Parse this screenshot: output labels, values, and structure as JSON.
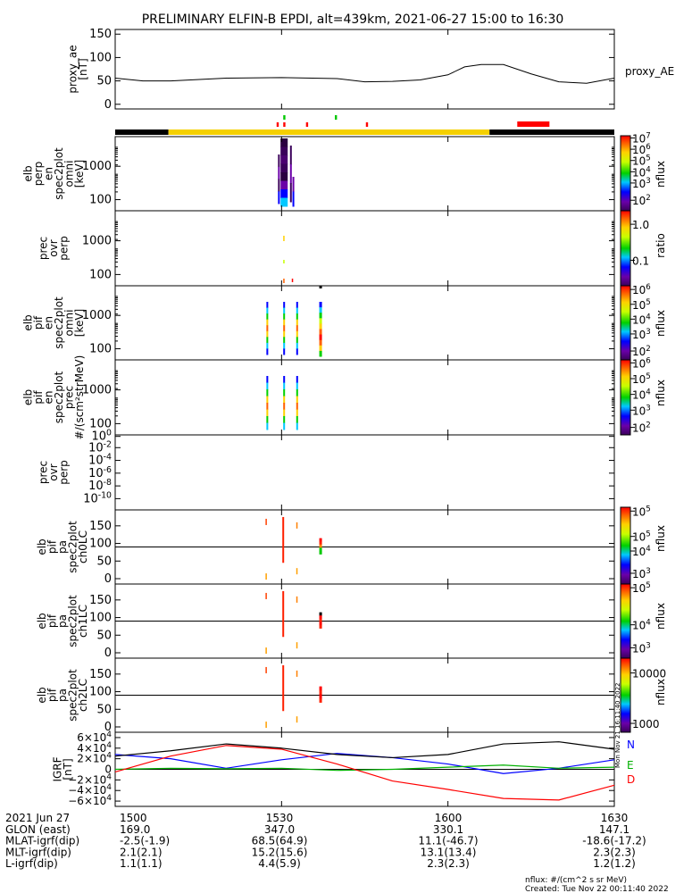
{
  "title": "PRELIMINARY ELFIN-B EPDI, alt=439km, 2021-06-27 15:00 to 16:30",
  "x_range": [
    "2021-06-27 15:00",
    "2021-06-27 16:30"
  ],
  "x_ticks": [
    "1500",
    "1530",
    "1600",
    "1630"
  ],
  "colors": {
    "N": "#0000ff",
    "E": "#00b000",
    "D": "#ff0000",
    "F": "#000000",
    "yellow": "#f5d000",
    "red": "#ff0000",
    "green": "#00c800"
  },
  "chart_data": [
    {
      "id": "proxy_ae",
      "type": "line",
      "ylabel": "proxy_ae\n[nT]",
      "legend": "proxy_AE",
      "ylim": [
        -10,
        160
      ],
      "yticks": [
        "150",
        "100",
        "50",
        "0"
      ],
      "x_minutes": [
        0,
        5,
        10,
        20,
        30,
        40,
        45,
        50,
        55,
        60,
        63,
        66,
        70,
        75,
        80,
        85,
        90
      ],
      "values": [
        56,
        50,
        50,
        56,
        57,
        55,
        48,
        49,
        52,
        63,
        80,
        85,
        85,
        65,
        48,
        45,
        56
      ]
    },
    {
      "id": "status_bar",
      "type": "bar",
      "segments": [
        {
          "color": "black",
          "from": 0,
          "to": 9.6
        },
        {
          "color": "yellow",
          "from": 9.6,
          "to": 67.5
        },
        {
          "color": "black",
          "from": 67.5,
          "to": 90
        }
      ],
      "red_marks": [
        29.3,
        30.5,
        34.6,
        45.4
      ],
      "green_marks": [
        30.5,
        39.8
      ],
      "red_block": [
        72.5,
        78.3
      ]
    },
    {
      "id": "elb_perp_en",
      "type": "heatmap",
      "ylabel": "elb\nperp\nen\nspec2plot\nomni\n[keV]",
      "yticks": [
        "1000",
        "100"
      ],
      "colorbar": {
        "label": "nflux",
        "ticks": [
          "10^7",
          "10^6",
          "10^5",
          "10^4",
          "10^3",
          "10^2"
        ]
      }
    },
    {
      "id": "prec_ovr_perp",
      "type": "heatmap",
      "ylabel": "prec\novr\nperp",
      "yticks": [
        "1000",
        "100"
      ],
      "colorbar": {
        "label": "ratio",
        "ticks": [
          "1.0",
          "0.1"
        ]
      }
    },
    {
      "id": "elb_pif_en_omni",
      "type": "heatmap",
      "ylabel": "elb\npif\nen\nspec2plot\nomni\n[keV]",
      "yticks": [
        "1000",
        "100"
      ],
      "colorbar": {
        "label": "nflux",
        "ticks": [
          "10^6",
          "10^5",
          "10^4",
          "10^3",
          "10^2"
        ]
      }
    },
    {
      "id": "elb_pif_en_prec",
      "type": "heatmap",
      "ylabel": "elb\npif\nen\nspec2plot\nprec\n#/(scm²strMeV)",
      "yticks": [
        "1000",
        "100"
      ],
      "colorbar": {
        "label": "nflux",
        "ticks": [
          "10^6",
          "10^5",
          "10^4",
          "10^3",
          "10^2"
        ]
      }
    },
    {
      "id": "prec_ovr_perp_2",
      "type": "line",
      "ylabel": "prec\novr\nperp",
      "yticks": [
        "10^0",
        "10^-2",
        "10^-4",
        "10^-6",
        "10^-8",
        "10^-10"
      ]
    },
    {
      "id": "ch0LC",
      "type": "heatmap",
      "ylabel": "elb\npif\npa\nspec2plot\nch0LC",
      "yticks": [
        "150",
        "100",
        "50",
        "0"
      ],
      "colorbar": {
        "label": "nflux",
        "ticks": [
          "10^5",
          "10^5",
          "10^4",
          "10^3"
        ]
      }
    },
    {
      "id": "ch1LC",
      "type": "heatmap",
      "ylabel": "elb\npif\npa\nspec2plot\nch1LC",
      "yticks": [
        "150",
        "100",
        "50",
        "0"
      ],
      "colorbar": {
        "label": "nflux",
        "ticks": [
          "10^5",
          "10^4",
          "10^3"
        ]
      }
    },
    {
      "id": "ch2LC",
      "type": "heatmap",
      "ylabel": "elb\npif\npa\nspec2plot\nch2LC",
      "yticks": [
        "150",
        "100",
        "50",
        "0"
      ],
      "colorbar": {
        "label": "nflux",
        "ticks": [
          "10000",
          "1000"
        ]
      }
    },
    {
      "id": "igrf",
      "type": "line",
      "ylabel": "IGRF\n[nT]",
      "ylim": [
        -70000,
        70000
      ],
      "yticks": [
        "6×10^4",
        "4×10^4",
        "2×10^4",
        "0",
        "−2×10^4",
        "−4×10^4",
        "−6×10^4"
      ],
      "x_minutes": [
        0,
        10,
        20,
        30,
        40,
        50,
        60,
        70,
        80,
        90
      ],
      "series": [
        {
          "name": "N",
          "color": "#0000ff",
          "values": [
            28000,
            20000,
            2000,
            18000,
            30000,
            22000,
            10000,
            -8000,
            2000,
            18000
          ]
        },
        {
          "name": "E",
          "color": "#00b000",
          "values": [
            0,
            2000,
            1000,
            2000,
            -2000,
            0,
            4000,
            8000,
            2000,
            4000
          ]
        },
        {
          "name": "D",
          "color": "#ff0000",
          "values": [
            -5000,
            25000,
            45000,
            38000,
            10000,
            -22000,
            -38000,
            -55000,
            -58000,
            -30000
          ]
        },
        {
          "name": "",
          "color": "#000000",
          "values": [
            25000,
            35000,
            48000,
            40000,
            28000,
            22000,
            28000,
            48000,
            52000,
            38000
          ]
        }
      ]
    }
  ],
  "footer": {
    "rows": [
      {
        "label": "2021 Jun 27",
        "values": [
          "1500",
          "1530",
          "1600",
          "1630"
        ]
      },
      {
        "label": "GLON (east)",
        "values": [
          "169.0",
          "347.0",
          "330.1",
          "147.1"
        ]
      },
      {
        "label": "MLAT-igrf(dip)",
        "values": [
          "-2.5(-1.9)",
          "68.5(64.9)",
          "11.1(-46.7)",
          "-18.6(-17.2)"
        ]
      },
      {
        "label": "MLT-igrf(dip)",
        "values": [
          "2.1(2.1)",
          "15.2(15.6)",
          "13.1(13.4)",
          "2.3(2.3)"
        ]
      },
      {
        "label": "L-igrf(dip)",
        "values": [
          "1.1(1.1)",
          "4.4(5.9)",
          "2.3(2.3)",
          "1.2(1.2)"
        ]
      }
    ],
    "nflux_note": "nflux: #/(cm^2 s sr MeV)",
    "created": "Created: Tue Nov 22 00:11:40 2022",
    "side_stamp": "Mon Nov 21 16:11:40 2022"
  }
}
